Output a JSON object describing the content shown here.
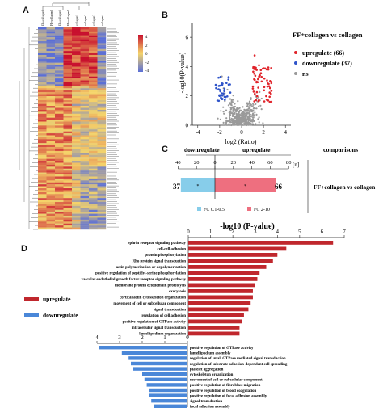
{
  "panels": {
    "A": "A",
    "B": "B",
    "C": "C",
    "D": "D"
  },
  "heatmap": {
    "column_labels": [
      "FF+collagen1",
      "FF+collagen2",
      "FF+collagen3",
      "FF+collagen4",
      "collagen1",
      "collagen2",
      "collagen3",
      "collagen4"
    ],
    "scale_ticks": [
      "4",
      "2",
      "0",
      "-2",
      "-4"
    ],
    "n_rows": 103,
    "colors": {
      "high": "#c8102e",
      "mid": "#f5d46a",
      "low": "#5b6fd6"
    }
  },
  "volcano": {
    "legend_title": "FF+collagen vs collagen",
    "legend_items": [
      {
        "label": "upregulate (66)",
        "color": "#e0242b"
      },
      {
        "label": "downregulate (37)",
        "color": "#2f54c9"
      },
      {
        "label": "ns",
        "color": "#999999"
      }
    ],
    "ylabel": "-log10(P-value)",
    "xlabel": "log2 (Ratio)",
    "x_ticks": [
      "-4",
      "-2",
      "0",
      "2",
      "4"
    ],
    "y_ticks": [
      "0",
      "2",
      "4",
      "6"
    ]
  },
  "comparisons": {
    "title": "comparisons",
    "left_header": "downregulate",
    "right_header": "upregulate",
    "n_label": "[n]",
    "axis_ticks": [
      "40",
      "20",
      "0",
      "20",
      "40",
      "60",
      "80"
    ],
    "row_label": "FF+collagen vs collagen",
    "down_count": "37",
    "up_count": "66",
    "legend": [
      {
        "label": "FC 0.1-0.5",
        "color": "#87cdea"
      },
      {
        "label": "FC 2-10",
        "color": "#ee6f7f"
      }
    ]
  },
  "chart_data": [
    {
      "type": "bar",
      "title": "-log10 (P-value)",
      "orientation": "horizontal",
      "x_ticks": [
        "0",
        "1",
        "2",
        "3",
        "4",
        "5",
        "6",
        "7"
      ],
      "xlim": [
        0,
        7
      ],
      "series_name": "upregulate",
      "color": "#c0272d",
      "categories": [
        "ephrin receptor signaling pathway",
        "cell-cell adhesion",
        "protein phosphorylation",
        "Rho protein signal transduction",
        "actin polymerization or depolymerization",
        "positive regulation of peptidyl-serine phosphorylation",
        "vascular endothelial growth factor receptor signaling pathway",
        "membrane protein ectodomain proteolysis",
        "exocytosis",
        "cortical actin cytoskeleton organization",
        "movement of cell or subcellular component",
        "signal transduction",
        "regulation of cell adhesion",
        "positive regulation of GTPase activity",
        "intracellular signal transduction",
        "lamellipodium organization"
      ],
      "values": [
        6.5,
        4.4,
        4.0,
        3.8,
        3.5,
        3.2,
        3.1,
        3.0,
        2.9,
        2.9,
        2.8,
        2.7,
        2.5,
        2.4,
        2.3,
        2.3
      ]
    },
    {
      "type": "bar",
      "orientation": "horizontal",
      "x_ticks": [
        "4",
        "3",
        "2",
        "1",
        "0"
      ],
      "xlim": [
        0,
        4
      ],
      "series_name": "downregulate",
      "color": "#4a87d8",
      "categories": [
        "positive regulation of GTPase activity",
        "lamellipodium assembly",
        "regulation of small GTPase mediated signal transduction",
        "regulation of substrate adhesion-dependent cell spreading",
        "platelet aggregation",
        "cytoskeleton organization",
        "movement of cell or subcellular component",
        "positive regulation of fibroblast migration",
        "positive regulation of blood coagulation",
        "positive regulation of focal adhesion assembly",
        "signal transduction",
        "focal adhesion assembly"
      ],
      "values": [
        3.9,
        2.9,
        2.6,
        2.5,
        2.4,
        2.0,
        1.9,
        1.8,
        1.7,
        1.7,
        1.6,
        1.5
      ]
    }
  ],
  "d_legend": [
    {
      "label": "upregulate",
      "color": "#c0272d"
    },
    {
      "label": "downregulate",
      "color": "#4a87d8"
    }
  ]
}
